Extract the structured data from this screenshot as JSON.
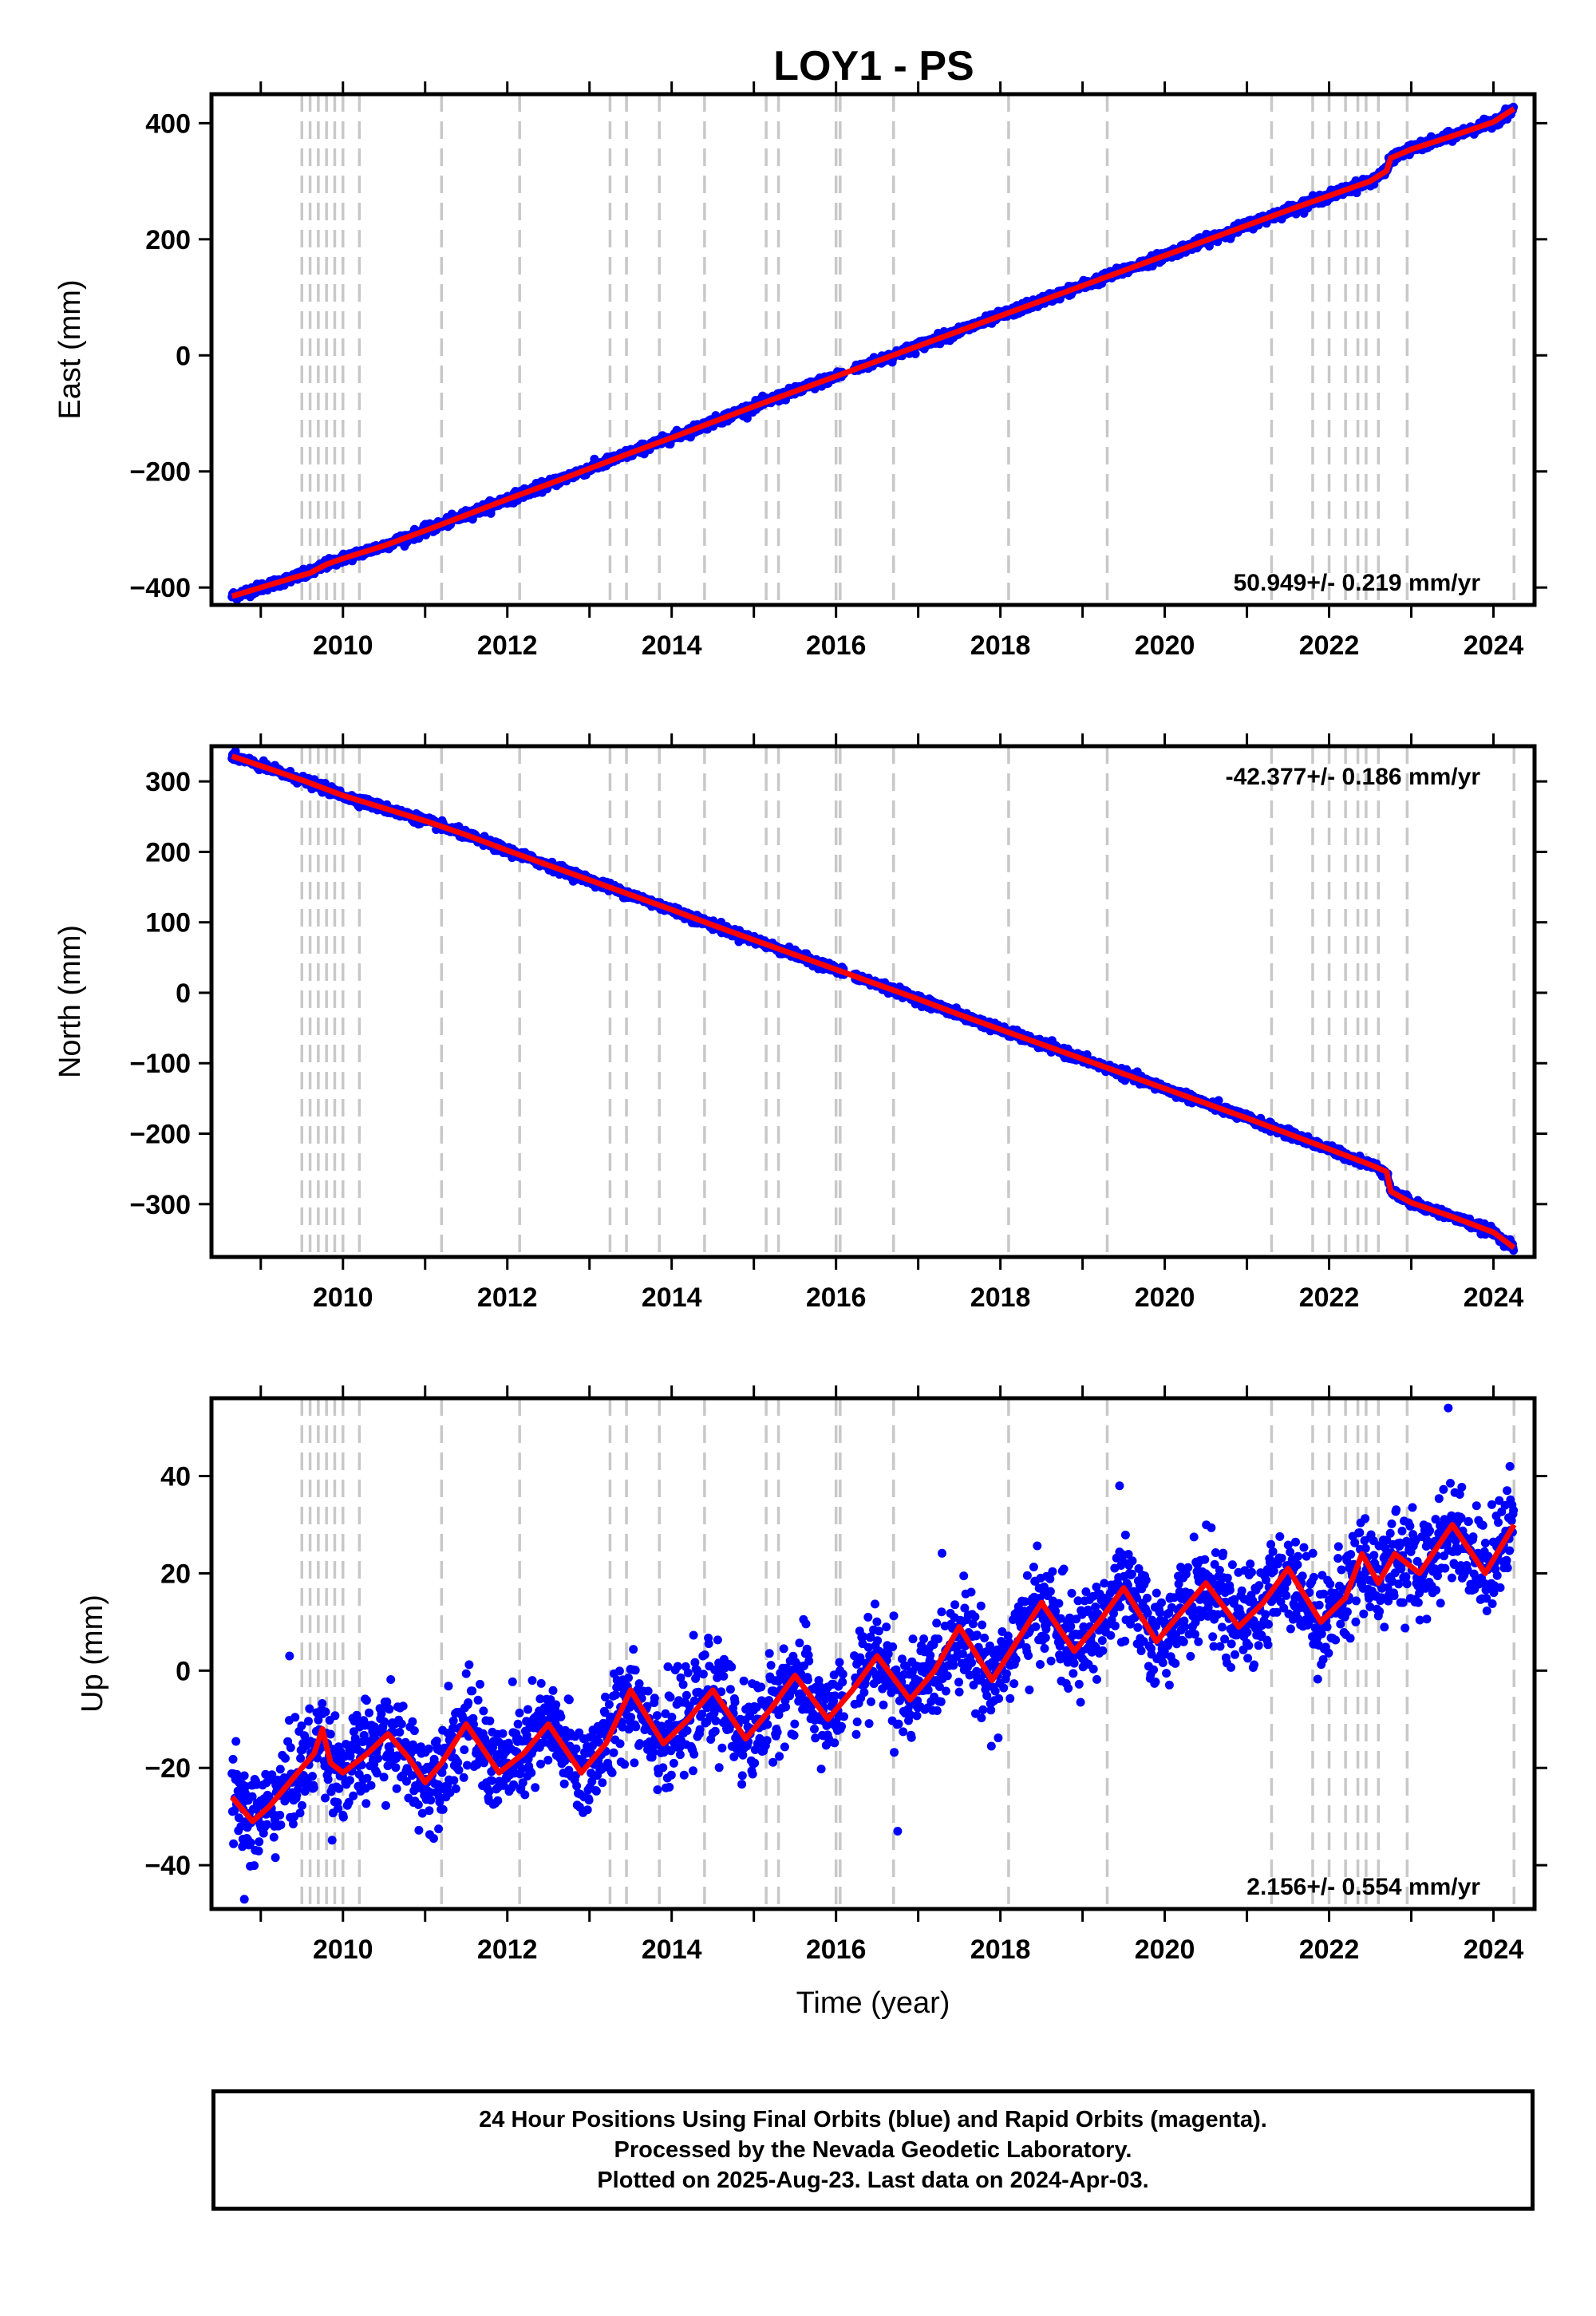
{
  "title": "LOY1 - PS",
  "colors": {
    "points": "#0000ff",
    "model": "#ff0000",
    "events": "#c8c8c8",
    "frame": "#000000"
  },
  "chart_data": [
    {
      "type": "scatter",
      "component": "East",
      "ylabel": "East (mm)",
      "xlim": [
        2008.4,
        2024.5
      ],
      "ylim": [
        -430,
        450
      ],
      "yticks": [
        -400,
        -200,
        0,
        200,
        400
      ],
      "xticks": [
        2010,
        2012,
        2014,
        2016,
        2018,
        2020,
        2022,
        2024
      ],
      "rate_label": "50.949+/- 0.219 mm/yr",
      "rate_position": "bottom-right",
      "series": [
        {
          "values_note": "",
          "model": [
            [
              2008.65,
              -415
            ],
            [
              2009.0,
              -400
            ],
            [
              2009.4,
              -383
            ],
            [
              2009.6,
              -375
            ],
            [
              2009.8,
              -360
            ],
            [
              2010.0,
              -350
            ],
            [
              2010.5,
              -328
            ],
            [
              2011.0,
              -302
            ],
            [
              2011.5,
              -275
            ],
            [
              2012.0,
              -248
            ],
            [
              2012.5,
              -222
            ],
            [
              2013.0,
              -195
            ],
            [
              2013.5,
              -168
            ],
            [
              2014.0,
              -142
            ],
            [
              2014.5,
              -115
            ],
            [
              2015.0,
              -88
            ],
            [
              2015.5,
              -62
            ],
            [
              2016.0,
              -36
            ],
            [
              2016.5,
              -10
            ],
            [
              2017.0,
              16
            ],
            [
              2017.5,
              42
            ],
            [
              2018.0,
              68
            ],
            [
              2018.5,
              94
            ],
            [
              2019.0,
              120
            ],
            [
              2019.5,
              146
            ],
            [
              2020.0,
              172
            ],
            [
              2020.5,
              198
            ],
            [
              2021.0,
              224
            ],
            [
              2021.5,
              250
            ],
            [
              2022.0,
              275
            ],
            [
              2022.5,
              300
            ],
            [
              2022.7,
              318
            ],
            [
              2022.75,
              340
            ],
            [
              2023.0,
              355
            ],
            [
              2023.5,
              378
            ],
            [
              2024.0,
              402
            ],
            [
              2024.25,
              425
            ]
          ],
          "scatter_sd": 4
        }
      ]
    },
    {
      "type": "scatter",
      "component": "North",
      "ylabel": "North (mm)",
      "xlim": [
        2008.4,
        2024.5
      ],
      "ylim": [
        -375,
        350
      ],
      "yticks": [
        -300,
        -200,
        -100,
        0,
        100,
        200,
        300
      ],
      "xticks": [
        2010,
        2012,
        2014,
        2016,
        2018,
        2020,
        2022,
        2024
      ],
      "rate_label": "-42.377+/- 0.186 mm/yr",
      "rate_position": "top-right",
      "series": [
        {
          "model": [
            [
              2008.65,
              336
            ],
            [
              2009.0,
              322
            ],
            [
              2009.5,
              302
            ],
            [
              2010.0,
              280
            ],
            [
              2010.5,
              262
            ],
            [
              2011.0,
              244
            ],
            [
              2011.5,
              224
            ],
            [
              2012.0,
              202
            ],
            [
              2012.5,
              181
            ],
            [
              2013.0,
              160
            ],
            [
              2013.5,
              139
            ],
            [
              2014.0,
              118
            ],
            [
              2014.5,
              96
            ],
            [
              2015.0,
              75
            ],
            [
              2015.5,
              54
            ],
            [
              2016.0,
              33
            ],
            [
              2016.5,
              12
            ],
            [
              2017.0,
              -9
            ],
            [
              2017.5,
              -31
            ],
            [
              2018.0,
              -52
            ],
            [
              2018.5,
              -73
            ],
            [
              2019.0,
              -94
            ],
            [
              2019.5,
              -115
            ],
            [
              2020.0,
              -136
            ],
            [
              2020.5,
              -157
            ],
            [
              2021.0,
              -178
            ],
            [
              2021.5,
              -200
            ],
            [
              2022.0,
              -222
            ],
            [
              2022.5,
              -244
            ],
            [
              2022.7,
              -254
            ],
            [
              2022.75,
              -282
            ],
            [
              2023.0,
              -298
            ],
            [
              2023.5,
              -318
            ],
            [
              2024.0,
              -340
            ],
            [
              2024.25,
              -362
            ]
          ],
          "scatter_sd": 3
        }
      ]
    },
    {
      "type": "scatter",
      "component": "Up",
      "ylabel": "Up (mm)",
      "xlabel": "Time (year)",
      "xlim": [
        2008.4,
        2024.5
      ],
      "ylim": [
        -49,
        56
      ],
      "yticks": [
        -40,
        -20,
        0,
        20,
        40
      ],
      "xticks": [
        2010,
        2012,
        2014,
        2016,
        2018,
        2020,
        2022,
        2024
      ],
      "rate_label": "2.156+/- 0.554 mm/yr",
      "rate_position": "bottom-right",
      "series": [
        {
          "model": [
            [
              2008.65,
              -26
            ],
            [
              2008.9,
              -31
            ],
            [
              2009.1,
              -28
            ],
            [
              2009.4,
              -22
            ],
            [
              2009.65,
              -17
            ],
            [
              2009.75,
              -12
            ],
            [
              2009.85,
              -19
            ],
            [
              2010.0,
              -21
            ],
            [
              2010.3,
              -17
            ],
            [
              2010.55,
              -13
            ],
            [
              2010.8,
              -18
            ],
            [
              2011.0,
              -23
            ],
            [
              2011.2,
              -19
            ],
            [
              2011.5,
              -11
            ],
            [
              2011.9,
              -21
            ],
            [
              2012.2,
              -17
            ],
            [
              2012.5,
              -11
            ],
            [
              2012.9,
              -21
            ],
            [
              2013.2,
              -15
            ],
            [
              2013.5,
              -4
            ],
            [
              2013.9,
              -15
            ],
            [
              2014.2,
              -10
            ],
            [
              2014.5,
              -4
            ],
            [
              2014.9,
              -14
            ],
            [
              2015.2,
              -8
            ],
            [
              2015.5,
              -1
            ],
            [
              2015.9,
              -10
            ],
            [
              2016.2,
              -4
            ],
            [
              2016.5,
              3
            ],
            [
              2016.9,
              -6
            ],
            [
              2017.2,
              0
            ],
            [
              2017.5,
              9
            ],
            [
              2017.9,
              -2
            ],
            [
              2018.2,
              6
            ],
            [
              2018.5,
              14
            ],
            [
              2018.9,
              4
            ],
            [
              2019.2,
              10
            ],
            [
              2019.5,
              17
            ],
            [
              2019.9,
              6
            ],
            [
              2020.2,
              12
            ],
            [
              2020.5,
              18
            ],
            [
              2020.9,
              9
            ],
            [
              2021.2,
              14
            ],
            [
              2021.5,
              21
            ],
            [
              2021.9,
              10
            ],
            [
              2022.2,
              15
            ],
            [
              2022.4,
              24
            ],
            [
              2022.6,
              18
            ],
            [
              2022.8,
              24
            ],
            [
              2023.1,
              20
            ],
            [
              2023.5,
              30
            ],
            [
              2023.9,
              20
            ],
            [
              2024.25,
              30
            ]
          ],
          "scatter_sd": 5,
          "outliers": [
            [
              2023.45,
              54
            ],
            [
              2024.2,
              42
            ],
            [
              2019.45,
              38
            ],
            [
              2016.75,
              -33
            ],
            [
              2008.8,
              -47
            ],
            [
              2009.35,
              3
            ]
          ]
        }
      ]
    }
  ],
  "event_lines": [
    2009.5,
    2009.6,
    2009.7,
    2009.8,
    2009.9,
    2010.0,
    2010.2,
    2011.2,
    2012.15,
    2013.25,
    2013.45,
    2013.85,
    2014.4,
    2015.15,
    2015.3,
    2016.0,
    2016.05,
    2016.7,
    2018.1,
    2019.3,
    2021.3,
    2021.8,
    2022.0,
    2022.2,
    2022.35,
    2022.45,
    2022.6,
    2022.95,
    2024.25
  ],
  "footer": {
    "line1": "24 Hour Positions Using Final Orbits (blue) and Rapid Orbits (magenta).",
    "line2": "Processed by the Nevada Geodetic Laboratory.",
    "line3": "Plotted on 2025-Aug-23. Last data on 2024-Apr-03."
  }
}
